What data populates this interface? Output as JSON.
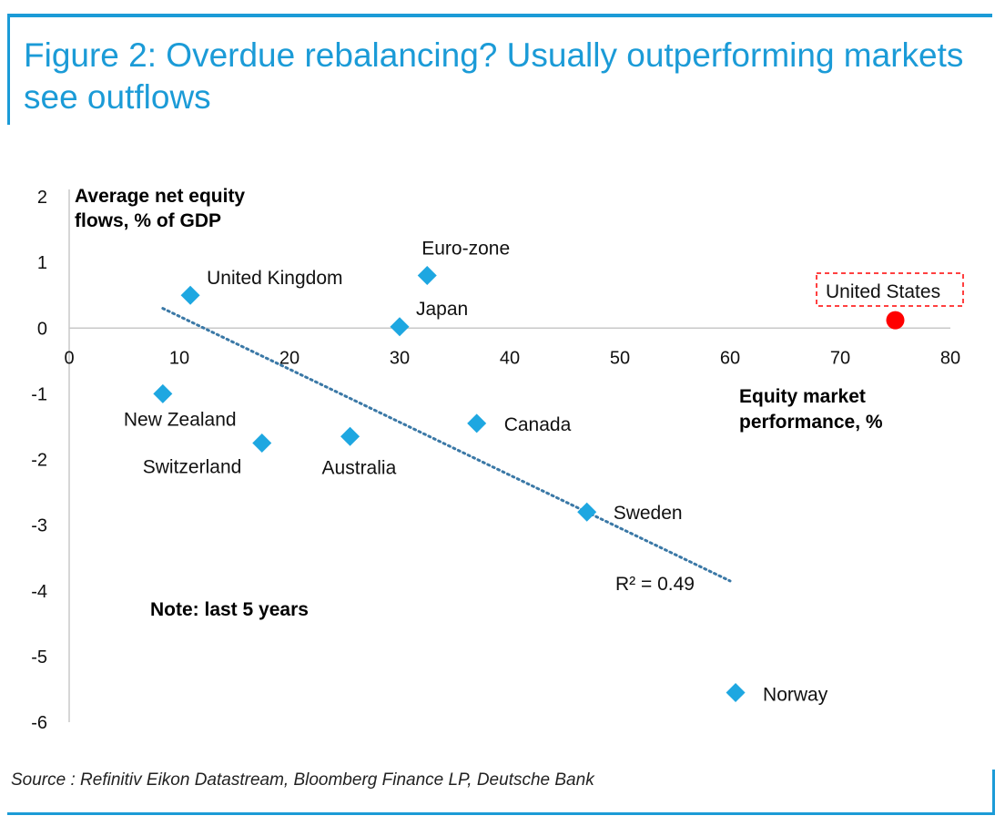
{
  "figure_title": "Figure 2: Overdue rebalancing? Usually outperforming markets see outflows",
  "source_note": "Source : Refinitiv Eikon Datastream, Bloomberg Finance LP, Deutsche Bank",
  "colors": {
    "accent": "#1b9bd7",
    "diamond": "#1ea7e1",
    "highlight": "#ff0000",
    "trend": "#3a78a6"
  },
  "chart_data": {
    "type": "scatter",
    "title": "",
    "xlabel": "Equity market performance, %",
    "xlabel_lines": [
      "Equity market",
      "performance, %"
    ],
    "ylabel": "Average net equity flows, % of GDP",
    "ylabel_lines": [
      "Average net equity",
      "flows, % of GDP"
    ],
    "xlim": [
      0,
      80
    ],
    "ylim": [
      -6,
      2
    ],
    "x_ticks": [
      0,
      10,
      20,
      30,
      40,
      50,
      60,
      70,
      80
    ],
    "y_ticks": [
      2,
      1,
      0,
      -1,
      -2,
      -3,
      -4,
      -5,
      -6
    ],
    "grid": false,
    "points": [
      {
        "label": "United Kingdom",
        "x": 11,
        "y": 0.5
      },
      {
        "label": "Euro-zone",
        "x": 32.5,
        "y": 0.8
      },
      {
        "label": "Japan",
        "x": 30,
        "y": 0.02
      },
      {
        "label": "New Zealand",
        "x": 8.5,
        "y": -1.0
      },
      {
        "label": "Switzerland",
        "x": 17.5,
        "y": -1.75
      },
      {
        "label": "Australia",
        "x": 25.5,
        "y": -1.65
      },
      {
        "label": "Canada",
        "x": 37,
        "y": -1.45
      },
      {
        "label": "Sweden",
        "x": 47,
        "y": -2.8
      },
      {
        "label": "Norway",
        "x": 60.5,
        "y": -5.55
      }
    ],
    "highlight_point": {
      "label": "United States",
      "x": 75,
      "y": 0.12
    },
    "trendline": {
      "x": [
        8.5,
        60
      ],
      "y": [
        0.3,
        -3.85
      ],
      "r2_label": "R² = 0.49"
    },
    "annotations": [
      "Note: last 5 years"
    ]
  }
}
